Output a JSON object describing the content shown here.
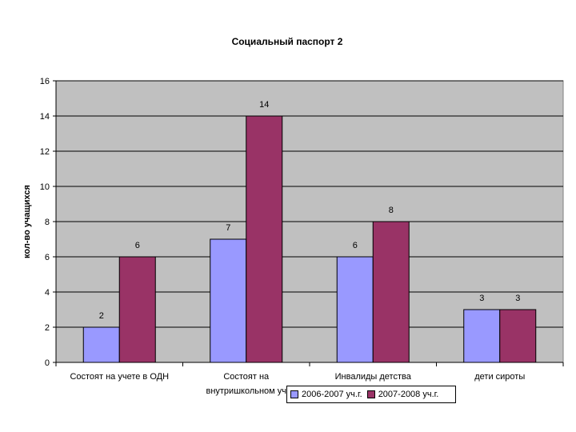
{
  "chart_data": {
    "type": "bar",
    "title": "Социальный паспорт 2",
    "ylabel": "кол-во учащихся",
    "xlabel": "",
    "ylim": [
      0,
      16
    ],
    "yticks": [
      0,
      2,
      4,
      6,
      8,
      10,
      12,
      14,
      16
    ],
    "grid": true,
    "legend_position": "bottom",
    "categories": [
      [
        "Состоят на учете в ОДН"
      ],
      [
        "Состоят на",
        "внутришкольном уч"
      ],
      [
        "Инвалиды детства"
      ],
      [
        "дети сироты"
      ]
    ],
    "series": [
      {
        "name": "2006-2007 уч.г.",
        "values": [
          2,
          7,
          6,
          3
        ],
        "color": "#9999FF"
      },
      {
        "name": "2007-2008 уч.г.",
        "values": [
          6,
          14,
          8,
          3
        ],
        "color": "#993366"
      }
    ],
    "plot_background": "#C0C0C0"
  }
}
